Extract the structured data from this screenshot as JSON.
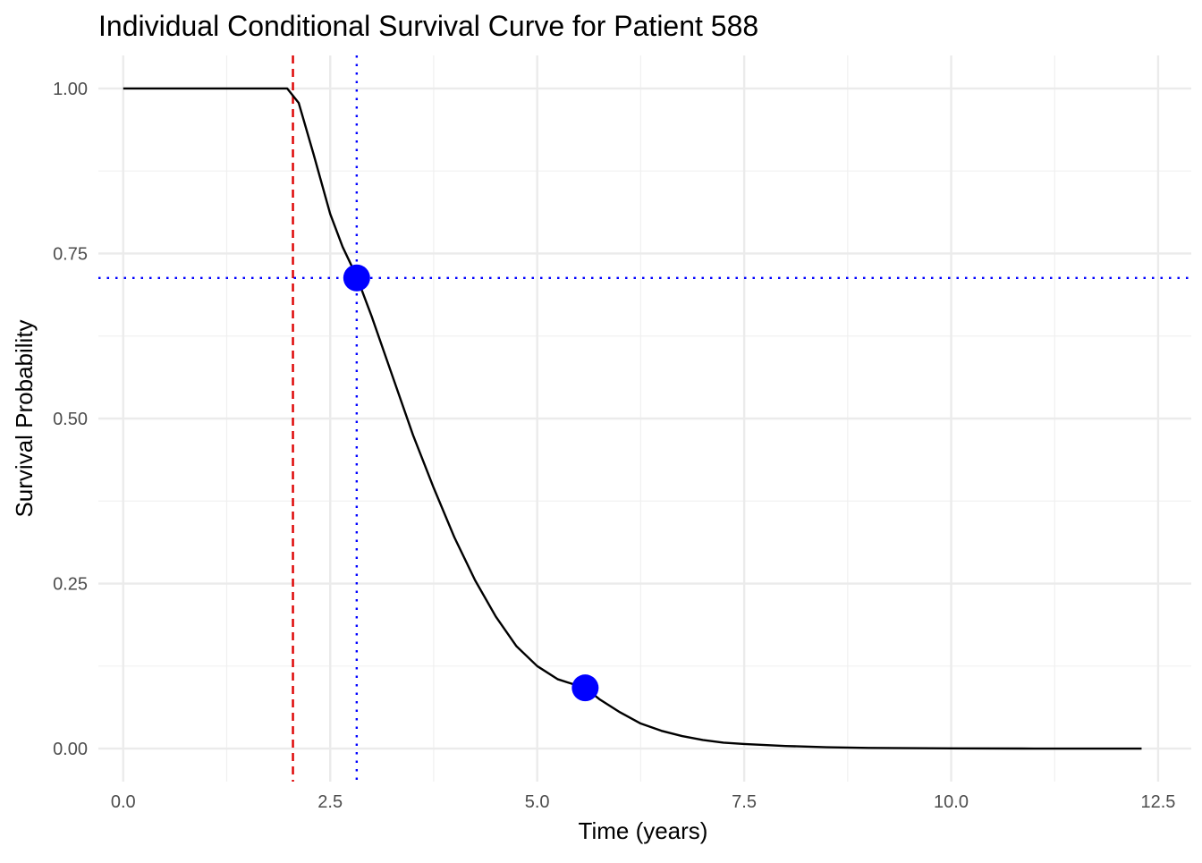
{
  "chart_data": {
    "type": "line",
    "title": "Individual Conditional Survival Curve for Patient 588",
    "xlabel": "Time (years)",
    "ylabel": "Survival Probability",
    "xlim": [
      -0.3,
      12.9
    ],
    "ylim": [
      -0.05,
      1.05
    ],
    "x_ticks": [
      0,
      2.5,
      5,
      7.5,
      10,
      12.5
    ],
    "x_tick_labels": [
      "0.0",
      "2.5",
      "5.0",
      "7.5",
      "10.0",
      "12.5"
    ],
    "y_ticks": [
      0,
      0.25,
      0.5,
      0.75,
      1.0
    ],
    "y_tick_labels": [
      "0.00",
      "0.25",
      "0.50",
      "0.75",
      "1.00"
    ],
    "grid": true,
    "series": [
      {
        "color": "#000000",
        "x": [
          0,
          1.98,
          2.12,
          2.3,
          2.5,
          2.65,
          2.82,
          3.0,
          3.25,
          3.5,
          3.75,
          4.0,
          4.25,
          4.5,
          4.75,
          5.0,
          5.25,
          5.5,
          5.58,
          5.75,
          6.0,
          6.25,
          6.5,
          6.75,
          7.0,
          7.25,
          7.5,
          8.0,
          8.5,
          9.0,
          9.5,
          10.0,
          11.0,
          12.3
        ],
        "y": [
          1.0,
          1.0,
          0.978,
          0.9,
          0.81,
          0.76,
          0.715,
          0.655,
          0.565,
          0.475,
          0.395,
          0.32,
          0.255,
          0.2,
          0.155,
          0.125,
          0.105,
          0.095,
          0.092,
          0.075,
          0.055,
          0.038,
          0.027,
          0.019,
          0.013,
          0.009,
          0.007,
          0.004,
          0.002,
          0.001,
          0.0007,
          0.0004,
          0.0001,
          0.0
        ]
      }
    ],
    "points": [
      {
        "x": 2.82,
        "y": 0.713,
        "color": "#0000ff"
      },
      {
        "x": 5.58,
        "y": 0.092,
        "color": "#0000ff"
      }
    ],
    "reference_lines": [
      {
        "orientation": "vertical",
        "value": 2.05,
        "color": "#dd0000",
        "style": "dashed"
      },
      {
        "orientation": "vertical",
        "value": 2.82,
        "color": "#0000ff",
        "style": "dotted"
      },
      {
        "orientation": "horizontal",
        "value": 0.713,
        "color": "#0000ff",
        "style": "dotted"
      }
    ]
  }
}
